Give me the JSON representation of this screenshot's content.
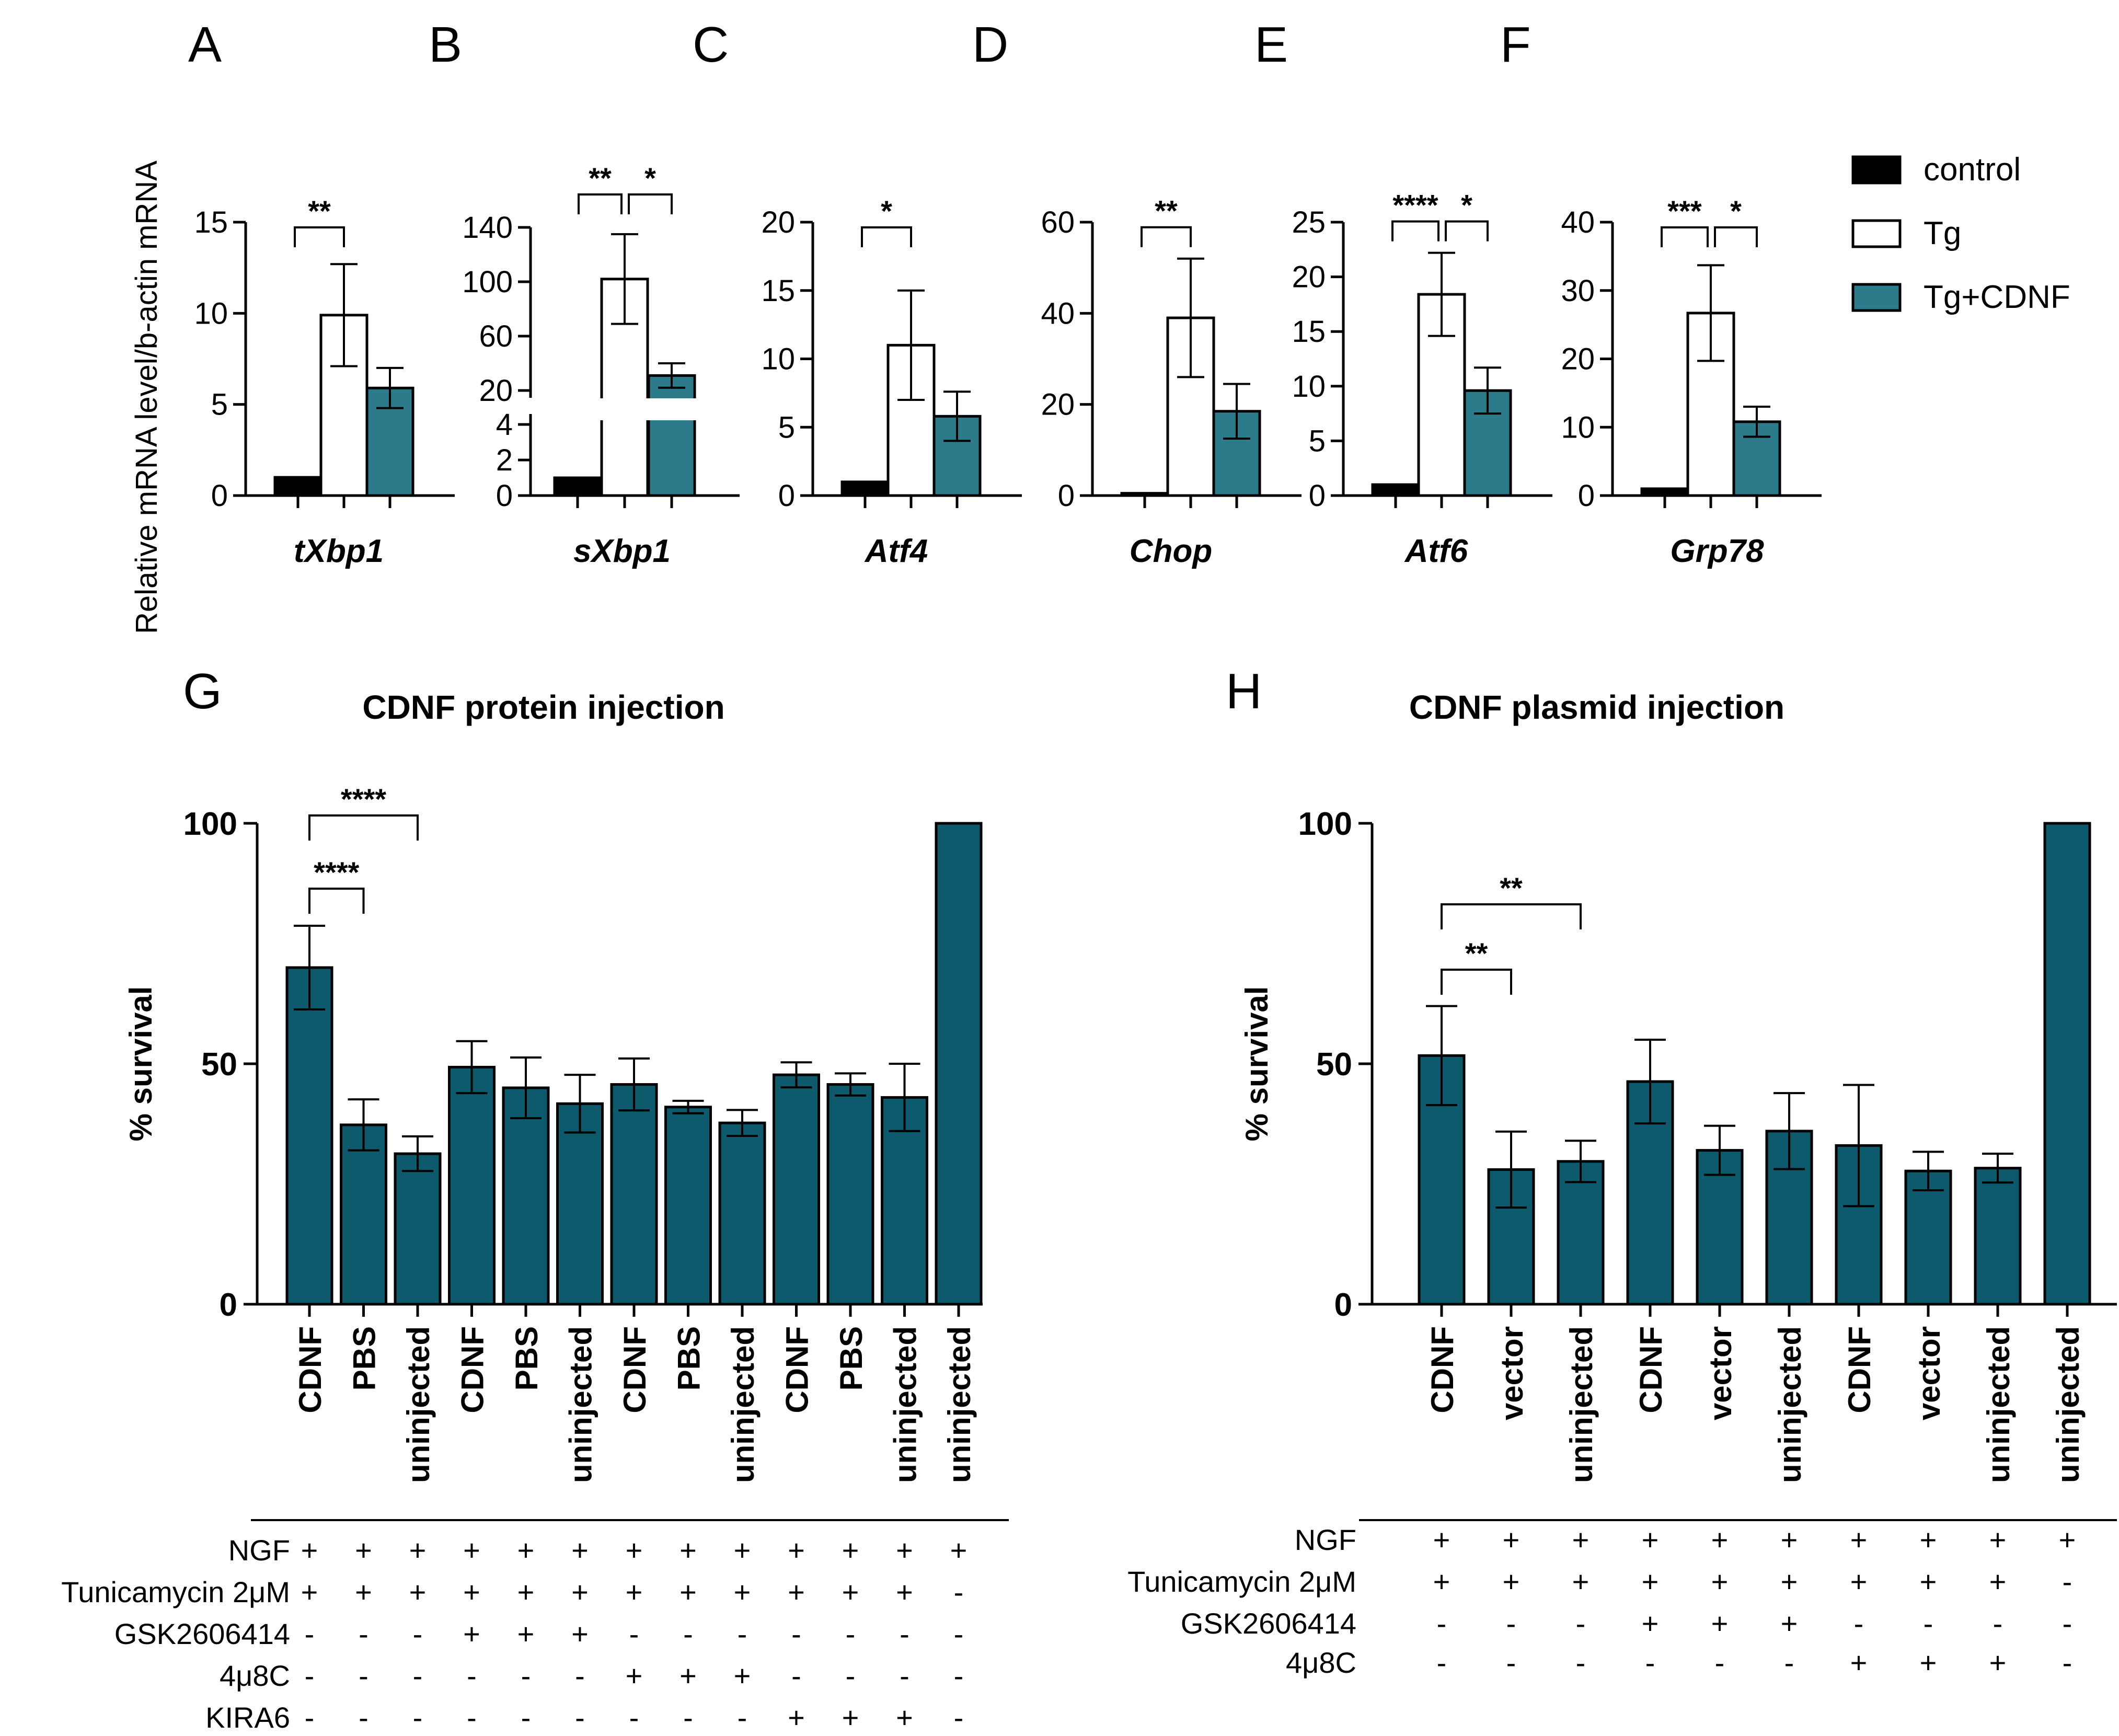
{
  "colors": {
    "control": "#000000",
    "tg": "#ffffff",
    "tg_cdnf": "#2b7b8b",
    "survival": "#0c5a6b"
  },
  "legend": {
    "items": [
      "control",
      "Tg",
      "Tg+CDNF"
    ]
  },
  "shared_ylabel": "Relative mRNA level/b-actin mRNA",
  "chart_data": [
    {
      "panel": "A",
      "type": "bar",
      "xlabel": "tXbp1",
      "categories": [
        "control",
        "Tg",
        "Tg+CDNF"
      ],
      "values": [
        1,
        9.9,
        5.9
      ],
      "errors": [
        0,
        2.8,
        1.1
      ],
      "ylim": [
        0,
        15
      ],
      "yticks": [
        "0",
        "5",
        "10",
        "15"
      ],
      "sig": [
        {
          "from": 0,
          "to": 1,
          "label": "**"
        }
      ]
    },
    {
      "panel": "B",
      "type": "bar",
      "xlabel": "sXbp1",
      "categories": [
        "control",
        "Tg",
        "Tg+CDNF"
      ],
      "values": [
        1,
        102,
        31
      ],
      "errors": [
        0,
        33,
        9
      ],
      "broken_axis": true,
      "yticks": [
        "0",
        "2",
        "4",
        "20",
        "60",
        "100",
        "140"
      ],
      "sig": [
        {
          "from": 0,
          "to": 1,
          "label": "**"
        },
        {
          "from": 1,
          "to": 2,
          "label": "*"
        }
      ]
    },
    {
      "panel": "C",
      "type": "bar",
      "xlabel": "Atf4",
      "categories": [
        "control",
        "Tg",
        "Tg+CDNF"
      ],
      "values": [
        1,
        11,
        5.8
      ],
      "errors": [
        0,
        4,
        1.8
      ],
      "ylim": [
        0,
        20
      ],
      "yticks": [
        "0",
        "5",
        "10",
        "15",
        "20"
      ],
      "sig": [
        {
          "from": 0,
          "to": 1,
          "label": "*"
        }
      ]
    },
    {
      "panel": "D",
      "type": "bar",
      "xlabel": "Chop",
      "categories": [
        "control",
        "Tg",
        "Tg+CDNF"
      ],
      "values": [
        0.5,
        39,
        18.5
      ],
      "errors": [
        0,
        13,
        6
      ],
      "ylim": [
        0,
        60
      ],
      "yticks": [
        "0",
        "20",
        "40",
        "60"
      ],
      "sig": [
        {
          "from": 0,
          "to": 1,
          "label": "**"
        }
      ]
    },
    {
      "panel": "E",
      "type": "bar",
      "xlabel": "Atf6",
      "categories": [
        "control",
        "Tg",
        "Tg+CDNF"
      ],
      "values": [
        1,
        18.4,
        9.6
      ],
      "errors": [
        0,
        3.8,
        2.1
      ],
      "ylim": [
        0,
        25
      ],
      "yticks": [
        "0",
        "5",
        "10",
        "15",
        "20",
        "25"
      ],
      "sig": [
        {
          "from": 0,
          "to": 1,
          "label": "****"
        },
        {
          "from": 1,
          "to": 2,
          "label": "*"
        }
      ]
    },
    {
      "panel": "F",
      "type": "bar",
      "xlabel": "Grp78",
      "categories": [
        "control",
        "Tg",
        "Tg+CDNF"
      ],
      "values": [
        1,
        26.7,
        10.8
      ],
      "errors": [
        0,
        7,
        2.2
      ],
      "ylim": [
        0,
        40
      ],
      "yticks": [
        "0",
        "10",
        "20",
        "30",
        "40"
      ],
      "sig": [
        {
          "from": 0,
          "to": 1,
          "label": "***"
        },
        {
          "from": 1,
          "to": 2,
          "label": "*"
        }
      ]
    },
    {
      "panel": "G",
      "type": "bar",
      "title": "CDNF protein injection",
      "ylabel": "% survival",
      "ylim": [
        0,
        100
      ],
      "yticks": [
        "0",
        "50",
        "100"
      ],
      "categories": [
        "CDNF",
        "PBS",
        "uninjected",
        "CDNF",
        "PBS",
        "uninjected",
        "CDNF",
        "PBS",
        "uninjected",
        "CDNF",
        "PBS",
        "uninjected",
        "uninjected"
      ],
      "values": [
        70,
        37.3,
        31.3,
        49.3,
        45,
        41.7,
        45.7,
        41,
        37.7,
        47.7,
        45.7,
        43,
        100
      ],
      "errors": [
        8.7,
        5.3,
        3.6,
        5.4,
        6.3,
        6,
        5.4,
        1.3,
        2.7,
        2.6,
        2.3,
        7,
        0
      ],
      "sig": [
        {
          "from": 0,
          "to": 1,
          "label": "****"
        },
        {
          "from": 0,
          "to": 2,
          "label": "****"
        }
      ],
      "conditions": [
        {
          "name": "NGF",
          "signs": [
            "+",
            "+",
            "+",
            "+",
            "+",
            "+",
            "+",
            "+",
            "+",
            "+",
            "+",
            "+",
            "+"
          ]
        },
        {
          "name": "Tunicamycin 2μM",
          "signs": [
            "+",
            "+",
            "+",
            "+",
            "+",
            "+",
            "+",
            "+",
            "+",
            "+",
            "+",
            "+",
            "-"
          ]
        },
        {
          "name": "GSK2606414",
          "signs": [
            "-",
            "-",
            "-",
            "+",
            "+",
            "+",
            "-",
            "-",
            "-",
            "-",
            "-",
            "-",
            "-"
          ]
        },
        {
          "name": "4μ8C",
          "signs": [
            "-",
            "-",
            "-",
            "-",
            "-",
            "-",
            "+",
            "+",
            "+",
            "-",
            "-",
            "-",
            "-"
          ]
        },
        {
          "name": "KIRA6",
          "signs": [
            "-",
            "-",
            "-",
            "-",
            "-",
            "-",
            "-",
            "-",
            "-",
            "+",
            "+",
            "+",
            "-"
          ]
        }
      ]
    },
    {
      "panel": "H",
      "type": "bar",
      "title": "CDNF plasmid injection",
      "ylabel": "% survival",
      "ylim": [
        0,
        100
      ],
      "yticks": [
        "0",
        "50",
        "100"
      ],
      "categories": [
        "CDNF",
        "vector",
        "uninjected",
        "CDNF",
        "vector",
        "uninjected",
        "CDNF",
        "vector",
        "uninjected",
        "uninjected"
      ],
      "values": [
        51.7,
        28,
        29.7,
        46.3,
        32,
        36,
        33,
        27.7,
        28.3,
        100
      ],
      "errors": [
        10.3,
        7.9,
        4.3,
        8.7,
        5.1,
        7.9,
        12.6,
        4,
        3,
        0
      ],
      "sig": [
        {
          "from": 0,
          "to": 1,
          "label": "**"
        },
        {
          "from": 0,
          "to": 2,
          "label": "**"
        }
      ],
      "conditions": [
        {
          "name": "NGF",
          "signs": [
            "+",
            "+",
            "+",
            "+",
            "+",
            "+",
            "+",
            "+",
            "+",
            "+"
          ]
        },
        {
          "name": "Tunicamycin 2μM",
          "signs": [
            "+",
            "+",
            "+",
            "+",
            "+",
            "+",
            "+",
            "+",
            "+",
            "-"
          ]
        },
        {
          "name": "GSK2606414",
          "signs": [
            "-",
            "-",
            "-",
            "+",
            "+",
            "+",
            "-",
            "-",
            "-",
            "-"
          ]
        },
        {
          "name": "4μ8C",
          "signs": [
            "-",
            "-",
            "-",
            "-",
            "-",
            "-",
            "+",
            "+",
            "+",
            "-"
          ]
        }
      ]
    }
  ]
}
